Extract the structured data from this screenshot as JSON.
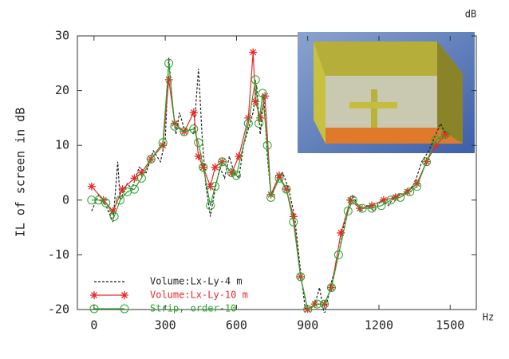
{
  "chart_data": {
    "type": "line",
    "y_unit": "dB",
    "x_unit": "Hz",
    "ylabel": "IL of screen in dB",
    "xlim": [
      -70,
      1610
    ],
    "ylim": [
      -20,
      30
    ],
    "xticks": [
      0,
      300,
      600,
      900,
      1200,
      1500
    ],
    "yticks": [
      -20,
      -10,
      0,
      10,
      20,
      30
    ],
    "legend": "lower left",
    "series": [
      {
        "name": "Volume:Lx-Ly-4 m",
        "color": "#222222",
        "marker": "none",
        "dash": true,
        "x": [
          -10,
          20,
          50,
          80,
          100,
          110,
          140,
          160,
          190,
          220,
          250,
          280,
          300,
          315,
          330,
          345,
          360,
          380,
          400,
          420,
          440,
          455,
          470,
          490,
          510,
          530,
          550,
          570,
          590,
          610,
          630,
          650,
          670,
          685,
          700,
          715,
          730,
          745,
          770,
          795,
          820,
          845,
          870,
          890,
          910,
          930,
          950,
          970,
          1000,
          1030,
          1060,
          1090,
          1120,
          1150,
          1180,
          1210,
          1240,
          1270,
          1300,
          1330,
          1350,
          1380,
          1410,
          1440,
          1460,
          1480
        ],
        "values": [
          -2,
          1,
          -1,
          -4,
          7,
          0,
          3,
          2,
          6,
          5,
          9,
          7,
          11,
          26,
          18,
          12,
          16,
          13,
          13,
          12,
          24,
          12,
          3,
          -3,
          2,
          6,
          4,
          8,
          5,
          4,
          10,
          13,
          16,
          21,
          12,
          19,
          8,
          1,
          3,
          5,
          2,
          -3,
          -13,
          -20,
          -20,
          -19,
          -16,
          -21,
          -15,
          -10,
          -3,
          1,
          -2,
          -1,
          -2,
          0,
          -1,
          1,
          1,
          2,
          3,
          7,
          9,
          12,
          14,
          12
        ]
      },
      {
        "name": "Volume:Lx-Ly-10 m",
        "color": "#e8282a",
        "marker": "asterisk",
        "dash": false,
        "x": [
          -10,
          40,
          80,
          120,
          170,
          200,
          240,
          290,
          315,
          340,
          380,
          420,
          440,
          460,
          490,
          510,
          540,
          580,
          610,
          650,
          670,
          680,
          700,
          720,
          745,
          780,
          810,
          840,
          870,
          900,
          930,
          970,
          1000,
          1040,
          1080,
          1120,
          1170,
          1220,
          1270,
          1320,
          1360,
          1400,
          1440,
          1480
        ],
        "values": [
          2.5,
          0,
          -2,
          2,
          4,
          5,
          7.5,
          10,
          22,
          14,
          12.5,
          16,
          8,
          6,
          2.5,
          6,
          7,
          5,
          8,
          15,
          27,
          18,
          15,
          19,
          1,
          4.5,
          2,
          -3,
          -14,
          -20,
          -19,
          -19,
          -16,
          -6,
          0,
          -1.5,
          -1,
          0,
          0.5,
          1.5,
          3,
          7,
          10,
          12
        ]
      },
      {
        "name": "Strip, order-10",
        "color": "#2aa52a",
        "marker": "circle",
        "dash": false,
        "x": [
          -10,
          20,
          50,
          85,
          110,
          140,
          170,
          200,
          240,
          290,
          315,
          340,
          380,
          420,
          440,
          460,
          490,
          510,
          540,
          580,
          600,
          650,
          680,
          695,
          710,
          730,
          745,
          780,
          810,
          840,
          870,
          900,
          940,
          970,
          1000,
          1030,
          1070,
          1090,
          1130,
          1170,
          1210,
          1250,
          1290,
          1330,
          1360,
          1400,
          1440,
          1480
        ],
        "values": [
          0,
          0,
          -0.5,
          -3,
          0,
          1.5,
          2,
          4,
          7.5,
          10.5,
          25,
          13.5,
          12.5,
          13,
          10.5,
          6,
          -1,
          2.5,
          7,
          5,
          4.5,
          14,
          22,
          14,
          19.5,
          10,
          0.5,
          4,
          2,
          -4,
          -14,
          -20,
          -19,
          -19,
          -16,
          -10,
          -2,
          0,
          -1.5,
          -1.5,
          -1,
          0,
          0.5,
          1.5,
          2.5,
          7,
          11,
          12
        ]
      }
    ]
  }
}
